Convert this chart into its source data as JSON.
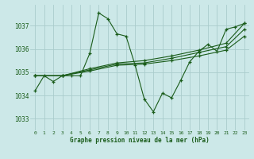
{
  "title": "Graphe pression niveau de la mer (hPa)",
  "background_color": "#cce8e8",
  "grid_color": "#aacccc",
  "line_color": "#1a5c1a",
  "marker_color": "#1a5c1a",
  "xlim": [
    -0.5,
    23.5
  ],
  "ylim": [
    1032.5,
    1037.9
  ],
  "yticks": [
    1033,
    1034,
    1035,
    1036,
    1037
  ],
  "xticks": [
    0,
    1,
    2,
    3,
    4,
    5,
    6,
    7,
    8,
    9,
    10,
    11,
    12,
    13,
    14,
    15,
    16,
    17,
    18,
    19,
    20,
    21,
    22,
    23
  ],
  "series": [
    {
      "x": [
        0,
        1,
        2,
        3,
        4,
        5,
        6,
        7,
        8,
        9,
        10,
        11,
        12,
        13,
        14,
        15,
        16,
        17,
        18,
        19,
        20,
        21,
        22,
        23
      ],
      "y": [
        1034.2,
        1034.85,
        1034.6,
        1034.85,
        1034.85,
        1034.85,
        1035.8,
        1037.55,
        1037.3,
        1036.65,
        1036.55,
        1035.3,
        1033.85,
        1033.3,
        1034.1,
        1033.9,
        1034.65,
        1035.45,
        1035.9,
        1036.2,
        1035.9,
        1036.85,
        1036.95,
        1037.1
      ]
    },
    {
      "x": [
        0,
        3,
        6,
        9,
        12,
        15,
        18,
        21,
        23
      ],
      "y": [
        1034.85,
        1034.85,
        1035.05,
        1035.3,
        1035.35,
        1035.5,
        1035.7,
        1035.95,
        1036.55
      ]
    },
    {
      "x": [
        0,
        3,
        6,
        9,
        12,
        15,
        18,
        21,
        23
      ],
      "y": [
        1034.85,
        1034.85,
        1035.1,
        1035.35,
        1035.4,
        1035.6,
        1035.85,
        1036.1,
        1036.85
      ]
    },
    {
      "x": [
        0,
        3,
        6,
        9,
        12,
        15,
        18,
        21,
        23
      ],
      "y": [
        1034.85,
        1034.85,
        1035.15,
        1035.4,
        1035.5,
        1035.7,
        1035.95,
        1036.25,
        1037.1
      ]
    }
  ]
}
